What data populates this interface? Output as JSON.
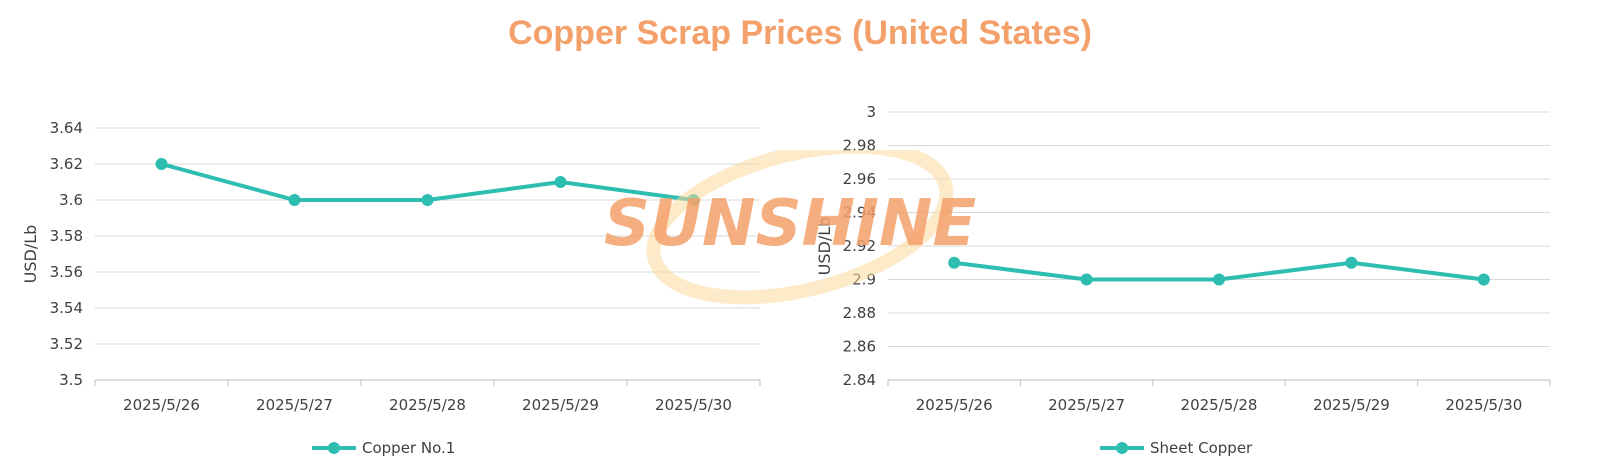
{
  "title": "Copper Scrap Prices (United States)",
  "watermark": {
    "text": "SUNSHINE",
    "color": "#f4a06a",
    "ring_color": "#fbd89a"
  },
  "series_color": "#2dbdb1",
  "chart_data": [
    {
      "type": "line",
      "categories": [
        "2025/5/26",
        "2025/5/27",
        "2025/5/28",
        "2025/5/29",
        "2025/5/30"
      ],
      "series": [
        {
          "name": "Copper No.1",
          "values": [
            3.62,
            3.6,
            3.6,
            3.61,
            3.6
          ]
        }
      ],
      "ylabel": "USD/Lb",
      "ylim": [
        3.5,
        3.64
      ],
      "yticks": [
        "3.5",
        "3.52",
        "3.54",
        "3.56",
        "3.58",
        "3.6",
        "3.62",
        "3.64"
      ],
      "grid": true,
      "legend": "bottom"
    },
    {
      "type": "line",
      "categories": [
        "2025/5/26",
        "2025/5/27",
        "2025/5/28",
        "2025/5/29",
        "2025/5/30"
      ],
      "series": [
        {
          "name": "Sheet Copper",
          "values": [
            2.91,
            2.9,
            2.9,
            2.91,
            2.9
          ]
        }
      ],
      "ylabel": "USD/Lb",
      "ylim": [
        2.84,
        3.0
      ],
      "yticks": [
        "2.84",
        "2.86",
        "2.88",
        "2.9",
        "2.92",
        "2.94",
        "2.96",
        "2.98",
        "3"
      ],
      "grid": true,
      "legend": "bottom"
    }
  ]
}
